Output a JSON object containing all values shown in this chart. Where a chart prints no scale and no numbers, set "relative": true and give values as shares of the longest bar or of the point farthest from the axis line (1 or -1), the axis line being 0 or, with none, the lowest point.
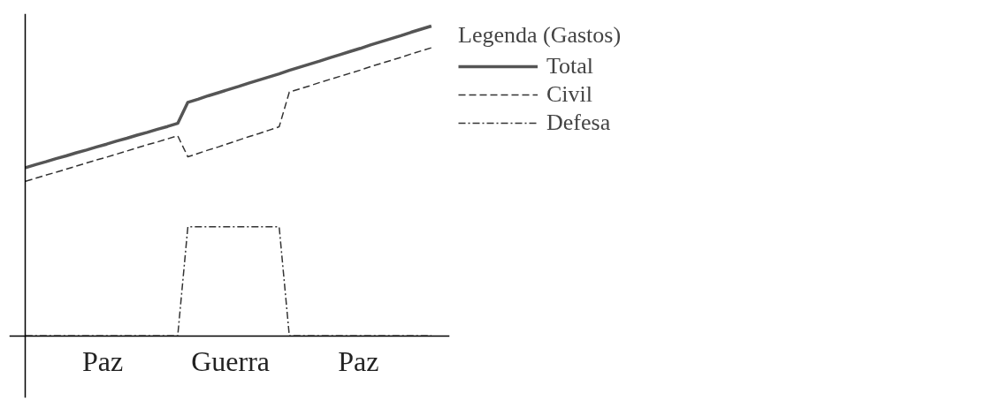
{
  "chart_data": {
    "type": "line",
    "relative": true,
    "legend_title": "Legenda (Gastos)",
    "legend": "right",
    "marker": "none",
    "annotations": [
      "Paz",
      "Guerra",
      "Paz"
    ],
    "categories": [
      null,
      null,
      null,
      null,
      null,
      null,
      null,
      null,
      null,
      null,
      null,
      null,
      null,
      null,
      null,
      null,
      null,
      null,
      null,
      null,
      null,
      null,
      null,
      null,
      null,
      null,
      null,
      null,
      null,
      null,
      null,
      null,
      null,
      null,
      null,
      null,
      null,
      null,
      null,
      null,
      null
    ],
    "series": [
      {
        "name": "Total",
        "color": "#555555",
        "line_style": "solid",
        "values": [
          0.543,
          0.553,
          0.562,
          0.572,
          0.581,
          0.591,
          0.6,
          0.61,
          0.619,
          0.629,
          0.638,
          0.648,
          0.657,
          0.667,
          0.676,
          0.686,
          0.754,
          0.764,
          0.775,
          0.785,
          0.795,
          0.805,
          0.816,
          0.826,
          0.836,
          0.846,
          0.857,
          0.867,
          0.877,
          0.887,
          0.898,
          0.908,
          0.918,
          0.928,
          0.939,
          0.949,
          0.959,
          0.969,
          0.98,
          0.99,
          1.0
        ]
      },
      {
        "name": "Civil",
        "color": "#333333",
        "line_style": "dashed",
        "values": [
          0.499,
          0.509,
          0.519,
          0.528,
          0.538,
          0.548,
          0.558,
          0.568,
          0.577,
          0.587,
          0.597,
          0.607,
          0.617,
          0.626,
          0.636,
          0.646,
          0.578,
          0.589,
          0.6,
          0.61,
          0.621,
          0.632,
          0.643,
          0.653,
          0.664,
          0.675,
          0.787,
          0.797,
          0.807,
          0.818,
          0.828,
          0.838,
          0.848,
          0.858,
          0.869,
          0.879,
          0.889,
          0.899,
          0.91,
          0.92,
          0.93
        ]
      },
      {
        "name": "Defesa",
        "color": "#333333",
        "line_style": "dashdot",
        "values": [
          0,
          0,
          0,
          0,
          0,
          0,
          0,
          0,
          0,
          0,
          0,
          0,
          0,
          0,
          0,
          0,
          0.352,
          0.352,
          0.352,
          0.352,
          0.352,
          0.352,
          0.352,
          0.352,
          0.352,
          0.352,
          0,
          0,
          0,
          0,
          0,
          0,
          0,
          0,
          0,
          0,
          0,
          0,
          0,
          0,
          0
        ]
      }
    ]
  }
}
